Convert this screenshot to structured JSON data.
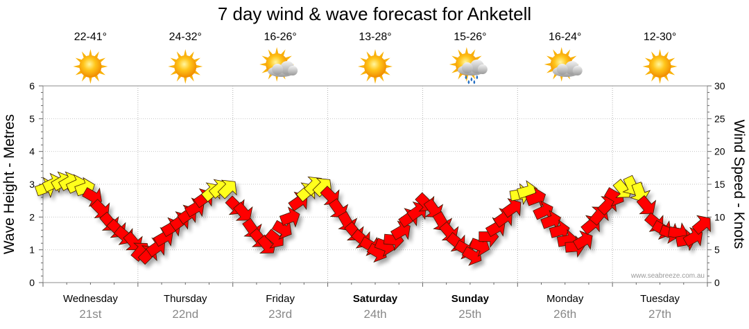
{
  "chart_data": {
    "type": "line",
    "title": "7 day wind & wave forecast for Anketell",
    "ylabel_left": "Wave Height - Metres",
    "ylabel_right": "Wind Speed - Knots",
    "ylim_left": [
      0,
      6
    ],
    "ylim_right": [
      0,
      30
    ],
    "yticks_left": [
      "0",
      "1",
      "2",
      "3",
      "4",
      "5",
      "6"
    ],
    "yticks_right": [
      "0",
      "5",
      "10",
      "15",
      "20",
      "25",
      "30"
    ],
    "grid": true,
    "credit": "www.seabreeze.com.au",
    "days": [
      {
        "name": "Wednesday",
        "date": "21st",
        "temp": "22-41°",
        "weather": "sun-icon",
        "bold": false
      },
      {
        "name": "Thursday",
        "date": "22nd",
        "temp": "24-32°",
        "weather": "sun-icon",
        "bold": false
      },
      {
        "name": "Friday",
        "date": "23rd",
        "temp": "16-26°",
        "weather": "partly-cloudy-icon",
        "bold": false
      },
      {
        "name": "Saturday",
        "date": "24th",
        "temp": "13-28°",
        "weather": "sun-icon",
        "bold": true
      },
      {
        "name": "Sunday",
        "date": "25th",
        "temp": "15-26°",
        "weather": "showers-icon",
        "bold": true
      },
      {
        "name": "Monday",
        "date": "26th",
        "temp": "16-24°",
        "weather": "partly-cloudy-icon",
        "bold": false
      },
      {
        "name": "Tuesday",
        "date": "27th",
        "temp": "12-30°",
        "weather": "sun-icon",
        "bold": false
      }
    ],
    "series": [
      {
        "name": "Wind",
        "unit": "knots",
        "x_day_offset": [
          0.0,
          0.08,
          0.17,
          0.25,
          0.33,
          0.42,
          0.5,
          0.58,
          0.67,
          0.75,
          0.83,
          0.92,
          1.0,
          1.08,
          1.17,
          1.25,
          1.33,
          1.42,
          1.5,
          1.58,
          1.67,
          1.75,
          1.83,
          1.92,
          2.0,
          2.08,
          2.17,
          2.25,
          2.33,
          2.42,
          2.5,
          2.58,
          2.67,
          2.75,
          2.83,
          2.92,
          3.0,
          3.08,
          3.17,
          3.25,
          3.33,
          3.42,
          3.5,
          3.58,
          3.67,
          3.75,
          3.83,
          3.92,
          4.0,
          4.08,
          4.17,
          4.25,
          4.33,
          4.42,
          4.5,
          4.58,
          4.67,
          4.75,
          4.83,
          4.92,
          5.0,
          5.08,
          5.17,
          5.25,
          5.33,
          5.42,
          5.5,
          5.58,
          5.67,
          5.75,
          5.83,
          5.92,
          6.0,
          6.08,
          6.17,
          6.25,
          6.33,
          6.42,
          6.5,
          6.58,
          6.67,
          6.75,
          6.83,
          6.92
        ],
        "speed": [
          14.5,
          15.2,
          15.5,
          15.5,
          15.0,
          14.5,
          13.0,
          11.0,
          9.0,
          8.0,
          7.0,
          6.0,
          5.0,
          4.5,
          5.5,
          7.0,
          8.5,
          9.5,
          10.5,
          11.5,
          13.0,
          14.0,
          14.5,
          14.5,
          11.5,
          10.5,
          8.0,
          6.5,
          5.5,
          6.5,
          8.0,
          10.0,
          12.5,
          14.0,
          15.0,
          14.8,
          13.0,
          11.0,
          9.0,
          7.5,
          6.5,
          5.5,
          4.5,
          5.5,
          6.5,
          8.0,
          10.0,
          11.0,
          12.0,
          11.0,
          9.0,
          7.5,
          6.0,
          5.0,
          4.0,
          5.5,
          7.0,
          8.5,
          10.0,
          11.5,
          13.5,
          14.0,
          13.0,
          11.0,
          9.5,
          8.0,
          6.5,
          5.5,
          6.5,
          9.0,
          10.5,
          12.0,
          13.0,
          14.0,
          14.5,
          13.5,
          11.5,
          9.0,
          8.0,
          7.5,
          7.5,
          6.5,
          7.0,
          9.0
        ],
        "direction_deg": [
          250,
          245,
          240,
          240,
          245,
          250,
          300,
          315,
          320,
          315,
          310,
          320,
          220,
          225,
          235,
          240,
          240,
          235,
          235,
          240,
          235,
          230,
          230,
          225,
          315,
          320,
          325,
          320,
          320,
          310,
          300,
          250,
          235,
          230,
          225,
          225,
          315,
          325,
          330,
          320,
          310,
          300,
          300,
          290,
          275,
          240,
          235,
          235,
          315,
          325,
          330,
          320,
          310,
          300,
          300,
          290,
          270,
          240,
          235,
          235,
          260,
          255,
          250,
          245,
          250,
          255,
          260,
          265,
          240,
          230,
          220,
          225,
          300,
          320,
          335,
          340,
          320,
          310,
          300,
          290,
          280,
          260,
          240,
          230
        ]
      }
    ]
  }
}
